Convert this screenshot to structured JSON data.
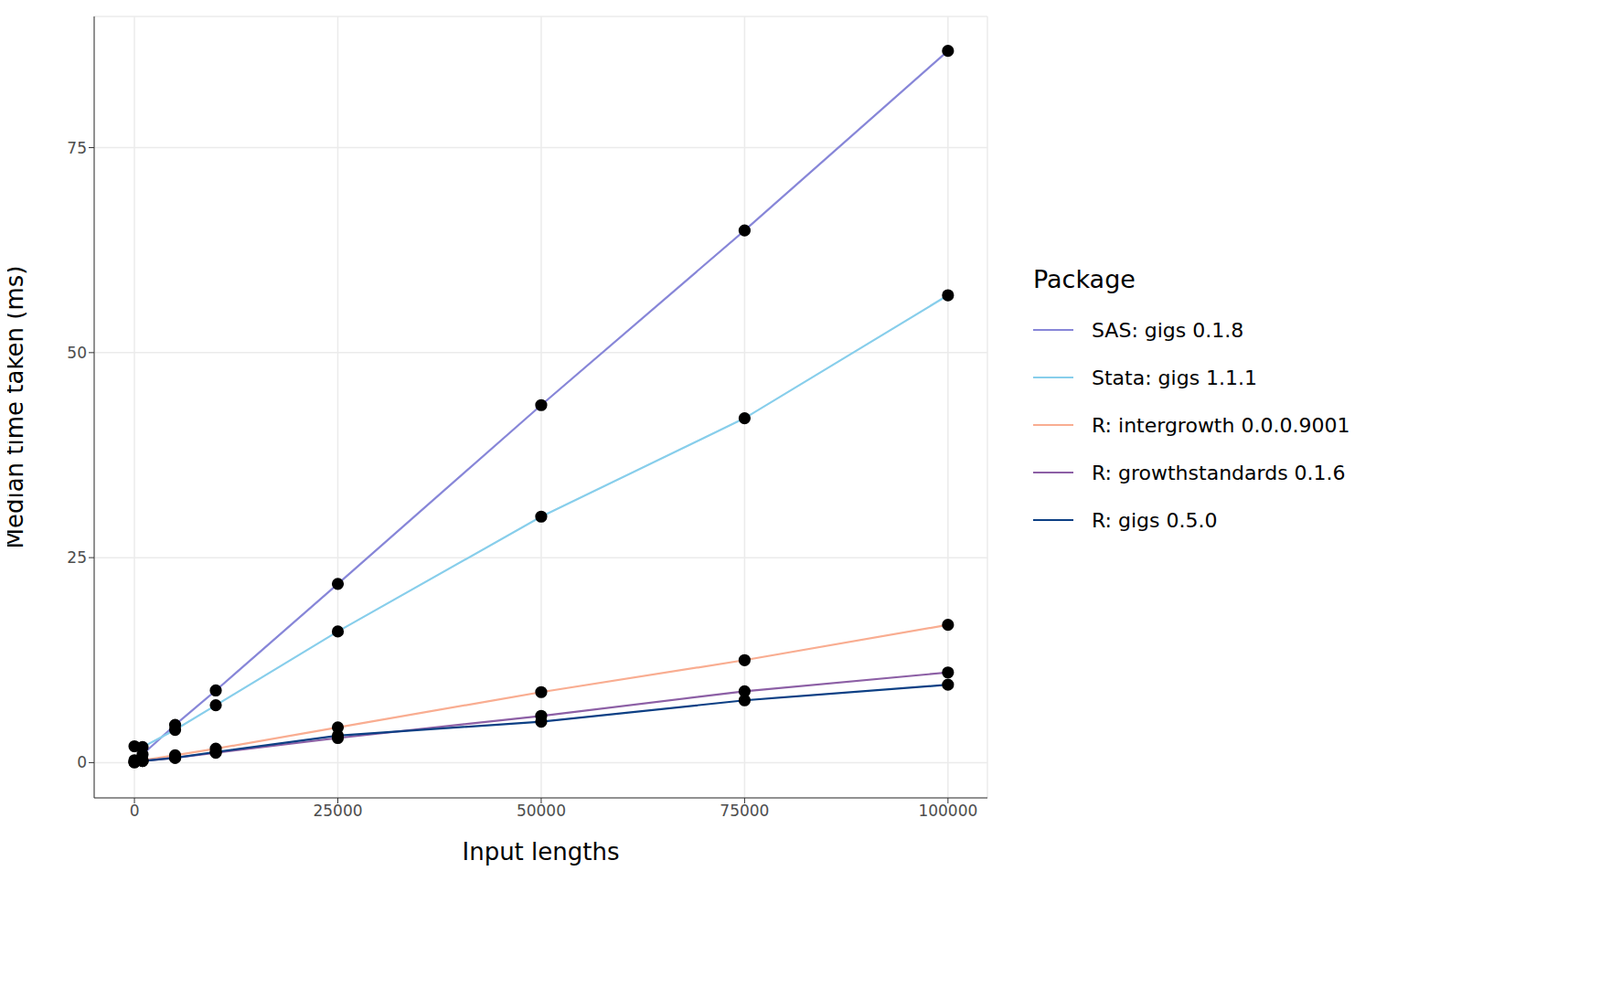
{
  "chart_data": {
    "type": "line",
    "xlabel": "Input lengths",
    "ylabel": "Median time taken (ms)",
    "legend_title": "Package",
    "legend": "right",
    "grid": true,
    "marker": "circle",
    "x": [
      1,
      1000,
      5000,
      10000,
      25000,
      50000,
      75000,
      100000
    ],
    "xlim": [
      -4950,
      104850
    ],
    "xticks": [
      0,
      25000,
      50000,
      75000,
      100000
    ],
    "ylim": [
      -4.3,
      91
    ],
    "yticks": [
      0,
      25,
      50,
      75
    ],
    "series": [
      {
        "name": "SAS: gigs 0.1.8",
        "color": "#8786d8",
        "values": [
          0.3,
          1.0,
          4.6,
          8.8,
          21.8,
          43.6,
          64.9,
          86.8
        ]
      },
      {
        "name": "Stata: gigs 1.1.1",
        "color": "#87ceeb",
        "values": [
          2.0,
          1.9,
          4.0,
          7.0,
          16.0,
          30.0,
          42.0,
          57.0
        ]
      },
      {
        "name": "R: intergrowth 0.0.0.9001",
        "color": "#f9ad91",
        "values": [
          0.1,
          0.3,
          0.9,
          1.7,
          4.3,
          8.6,
          12.5,
          16.8
        ]
      },
      {
        "name": "R: growthstandards 0.1.6",
        "color": "#8c5fa5",
        "values": [
          0.05,
          0.2,
          0.6,
          1.2,
          3.0,
          5.7,
          8.7,
          11.0
        ]
      },
      {
        "name": "R: gigs 0.5.0",
        "color": "#0c3f84",
        "values": [
          0.05,
          0.2,
          0.6,
          1.3,
          3.3,
          5.0,
          7.6,
          9.5
        ]
      }
    ]
  }
}
